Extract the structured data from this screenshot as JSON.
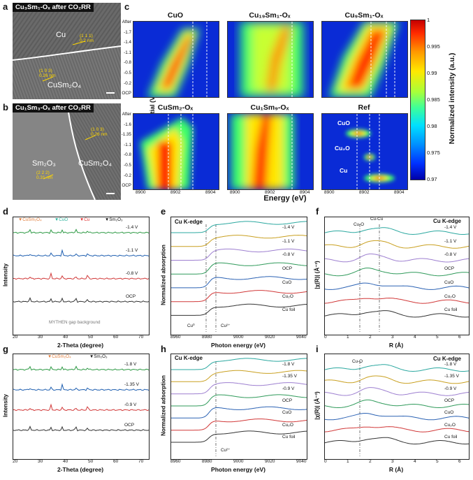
{
  "panels": {
    "a": "a",
    "b": "b",
    "c": "c",
    "d": "d",
    "e": "e",
    "f": "f",
    "g": "g",
    "h": "h",
    "i": "i"
  },
  "tem_a": {
    "title": "Cu₃Sm₁-Oₓ after CO₂RR",
    "cu": "Cu",
    "cusm": "CuSm₂O₄",
    "ann1": "(1 1 1)\n0.2 nm",
    "ann2": "(1 0 3)\n0.26 nm"
  },
  "tem_b": {
    "title": "Cu₁Sm₃-Oₓ after CO₂RR",
    "sm": "Sm₂O₃",
    "cusm": "CuSm₂O₄",
    "ann1": "(1 0 3)\n0.26 nm",
    "ann2": "(2 2 2)\n0.31 nm"
  },
  "heatmaps": {
    "titles": [
      "CuO",
      "Cu₁₉Sm₁-Oₓ",
      "Cu₉Sm₁-Oₓ",
      "CuSm₂-Oₓ",
      "Cu₁Sm₉-Oₓ",
      "Ref"
    ],
    "ylabel": "Potential (V vs. RHE)",
    "xlabel": "Energy (eV)",
    "yticks_top": [
      "After",
      "-1.7",
      "-1.4",
      "-1.1",
      "-0.8",
      "-0.5",
      "-0.2",
      "OCP"
    ],
    "yticks_bot": [
      "After",
      "-1.6",
      "-1.35",
      "-1.1",
      "-0.8",
      "-0.5",
      "-0.2",
      "OCP"
    ],
    "xticks": [
      "8900",
      "8902",
      "8904"
    ],
    "ref_labels": [
      "CuO",
      "Cu₂O",
      "Cu"
    ]
  },
  "colorbar": {
    "label": "Normalized intensity (a.u.)",
    "ticks": [
      "1",
      "0.995",
      "0.99",
      "0.985",
      "0.98",
      "0.975",
      "0.97"
    ]
  },
  "panel_d": {
    "legend": [
      "▼CuSm₂O₄",
      "▼CuO",
      "▼Cu",
      "▼Sm₂O₃"
    ],
    "legend_colors": [
      "#e07b39",
      "#2bb39c",
      "#e03030",
      "#111111"
    ],
    "traces": [
      "-1.4 V",
      "-1.1 V",
      "-0.8 V",
      "OCP"
    ],
    "bg": "MYTHEN gap background",
    "ylabel": "Intensity",
    "xlabel": "2-Theta (degree)",
    "xticks": [
      "20",
      "30",
      "40",
      "50",
      "60",
      "70"
    ]
  },
  "panel_e": {
    "title": "Cu K-edge",
    "traces": [
      "-1.4 V",
      "-1.1 V",
      "-0.8 V",
      "OCP",
      "CuO",
      "Cu₂O",
      "Cu foil"
    ],
    "marks": [
      "Cu⁰",
      "Cu²⁺"
    ],
    "ylabel": "Normalized absorption",
    "xlabel": "Photon energy (eV)",
    "xticks": [
      "8960",
      "8980",
      "9000",
      "9020",
      "9040"
    ]
  },
  "panel_f": {
    "title": "Cu K-edge",
    "cuo": "Cu-O",
    "cucu": "Cu-Cu",
    "traces": [
      "-1.4 V",
      "-1.1 V",
      "-0.8 V",
      "OCP",
      "CuO",
      "Cu₂O",
      "Cu foil"
    ],
    "ylabel": "|χ(R)| (Å⁻³)",
    "xlabel": "R (Å)",
    "xticks": [
      "0",
      "1",
      "2",
      "3",
      "4",
      "5",
      "6"
    ]
  },
  "panel_g": {
    "legend": [
      "▼CuSm₂O₄",
      "▼Sm₂O₃"
    ],
    "legend_colors": [
      "#e07b39",
      "#111111"
    ],
    "traces": [
      "-1.8 V",
      "-1.35 V",
      "-0.9 V",
      "OCP"
    ],
    "ylabel": "Intensity",
    "xlabel": "2-Theta (degree)",
    "xticks": [
      "20",
      "30",
      "40",
      "50",
      "60",
      "70"
    ]
  },
  "panel_h": {
    "title": "Cu K-edge",
    "traces": [
      "-1.8 V",
      "-1.35 V",
      "-0.9 V",
      "OCP",
      "CuO",
      "Cu₂O",
      "Cu foil"
    ],
    "mark": "Cu²⁺",
    "ylabel": "Normalized adsorption",
    "xlabel": "Photon energy (eV)",
    "xticks": [
      "8960",
      "8980",
      "9000",
      "9020",
      "9040"
    ]
  },
  "panel_i": {
    "title": "Cu K-edge",
    "cuo": "Cu-O",
    "traces": [
      "-1.8 V",
      "-1.35 V",
      "-0.9 V",
      "OCP",
      "CuO",
      "Cu₂O",
      "Cu foil"
    ],
    "ylabel": "|χ(R)| (Å⁻³)",
    "xlabel": "R (Å)",
    "xticks": [
      "0",
      "1",
      "2",
      "3",
      "4",
      "5",
      "6"
    ]
  },
  "trace_colors": [
    "#2ba8a0",
    "#c9a020",
    "#9d7fd0",
    "#2f9a5a",
    "#2b62b4",
    "#d13838",
    "#333333"
  ],
  "xrd_colors": [
    "#2e9a45",
    "#1f5fb0",
    "#d13838",
    "#333333"
  ]
}
